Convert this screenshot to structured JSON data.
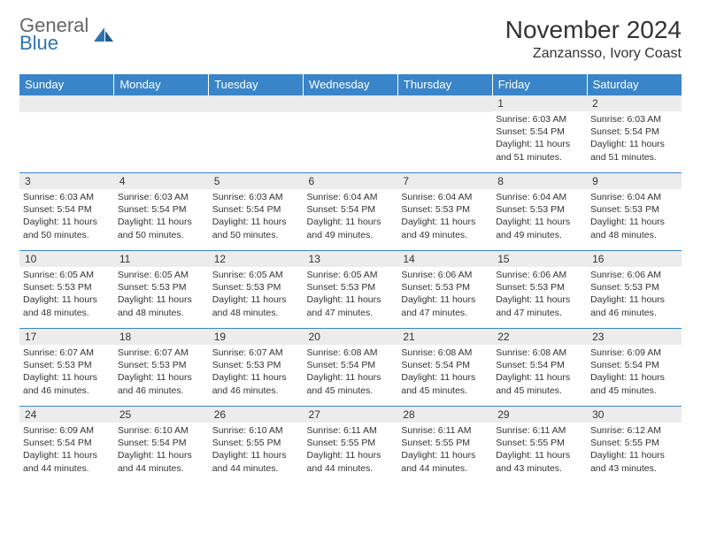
{
  "logo": {
    "general": "General",
    "blue": "Blue"
  },
  "title": "November 2024",
  "location": "Zanzansso, Ivory Coast",
  "colors": {
    "header_bg": "#3a85c9",
    "header_text": "#ffffff",
    "daynum_bg": "#ececec",
    "border": "#3a85c9",
    "logo_gray": "#666666",
    "logo_blue": "#2d74b5"
  },
  "weekdays": [
    "Sunday",
    "Monday",
    "Tuesday",
    "Wednesday",
    "Thursday",
    "Friday",
    "Saturday"
  ],
  "weeks": [
    [
      null,
      null,
      null,
      null,
      null,
      {
        "n": "1",
        "sr": "6:03 AM",
        "ss": "5:54 PM",
        "dl": "11 hours and 51 minutes."
      },
      {
        "n": "2",
        "sr": "6:03 AM",
        "ss": "5:54 PM",
        "dl": "11 hours and 51 minutes."
      }
    ],
    [
      {
        "n": "3",
        "sr": "6:03 AM",
        "ss": "5:54 PM",
        "dl": "11 hours and 50 minutes."
      },
      {
        "n": "4",
        "sr": "6:03 AM",
        "ss": "5:54 PM",
        "dl": "11 hours and 50 minutes."
      },
      {
        "n": "5",
        "sr": "6:03 AM",
        "ss": "5:54 PM",
        "dl": "11 hours and 50 minutes."
      },
      {
        "n": "6",
        "sr": "6:04 AM",
        "ss": "5:54 PM",
        "dl": "11 hours and 49 minutes."
      },
      {
        "n": "7",
        "sr": "6:04 AM",
        "ss": "5:53 PM",
        "dl": "11 hours and 49 minutes."
      },
      {
        "n": "8",
        "sr": "6:04 AM",
        "ss": "5:53 PM",
        "dl": "11 hours and 49 minutes."
      },
      {
        "n": "9",
        "sr": "6:04 AM",
        "ss": "5:53 PM",
        "dl": "11 hours and 48 minutes."
      }
    ],
    [
      {
        "n": "10",
        "sr": "6:05 AM",
        "ss": "5:53 PM",
        "dl": "11 hours and 48 minutes."
      },
      {
        "n": "11",
        "sr": "6:05 AM",
        "ss": "5:53 PM",
        "dl": "11 hours and 48 minutes."
      },
      {
        "n": "12",
        "sr": "6:05 AM",
        "ss": "5:53 PM",
        "dl": "11 hours and 48 minutes."
      },
      {
        "n": "13",
        "sr": "6:05 AM",
        "ss": "5:53 PM",
        "dl": "11 hours and 47 minutes."
      },
      {
        "n": "14",
        "sr": "6:06 AM",
        "ss": "5:53 PM",
        "dl": "11 hours and 47 minutes."
      },
      {
        "n": "15",
        "sr": "6:06 AM",
        "ss": "5:53 PM",
        "dl": "11 hours and 47 minutes."
      },
      {
        "n": "16",
        "sr": "6:06 AM",
        "ss": "5:53 PM",
        "dl": "11 hours and 46 minutes."
      }
    ],
    [
      {
        "n": "17",
        "sr": "6:07 AM",
        "ss": "5:53 PM",
        "dl": "11 hours and 46 minutes."
      },
      {
        "n": "18",
        "sr": "6:07 AM",
        "ss": "5:53 PM",
        "dl": "11 hours and 46 minutes."
      },
      {
        "n": "19",
        "sr": "6:07 AM",
        "ss": "5:53 PM",
        "dl": "11 hours and 46 minutes."
      },
      {
        "n": "20",
        "sr": "6:08 AM",
        "ss": "5:54 PM",
        "dl": "11 hours and 45 minutes."
      },
      {
        "n": "21",
        "sr": "6:08 AM",
        "ss": "5:54 PM",
        "dl": "11 hours and 45 minutes."
      },
      {
        "n": "22",
        "sr": "6:08 AM",
        "ss": "5:54 PM",
        "dl": "11 hours and 45 minutes."
      },
      {
        "n": "23",
        "sr": "6:09 AM",
        "ss": "5:54 PM",
        "dl": "11 hours and 45 minutes."
      }
    ],
    [
      {
        "n": "24",
        "sr": "6:09 AM",
        "ss": "5:54 PM",
        "dl": "11 hours and 44 minutes."
      },
      {
        "n": "25",
        "sr": "6:10 AM",
        "ss": "5:54 PM",
        "dl": "11 hours and 44 minutes."
      },
      {
        "n": "26",
        "sr": "6:10 AM",
        "ss": "5:55 PM",
        "dl": "11 hours and 44 minutes."
      },
      {
        "n": "27",
        "sr": "6:11 AM",
        "ss": "5:55 PM",
        "dl": "11 hours and 44 minutes."
      },
      {
        "n": "28",
        "sr": "6:11 AM",
        "ss": "5:55 PM",
        "dl": "11 hours and 44 minutes."
      },
      {
        "n": "29",
        "sr": "6:11 AM",
        "ss": "5:55 PM",
        "dl": "11 hours and 43 minutes."
      },
      {
        "n": "30",
        "sr": "6:12 AM",
        "ss": "5:55 PM",
        "dl": "11 hours and 43 minutes."
      }
    ]
  ],
  "labels": {
    "sunrise": "Sunrise:",
    "sunset": "Sunset:",
    "daylight": "Daylight:"
  }
}
